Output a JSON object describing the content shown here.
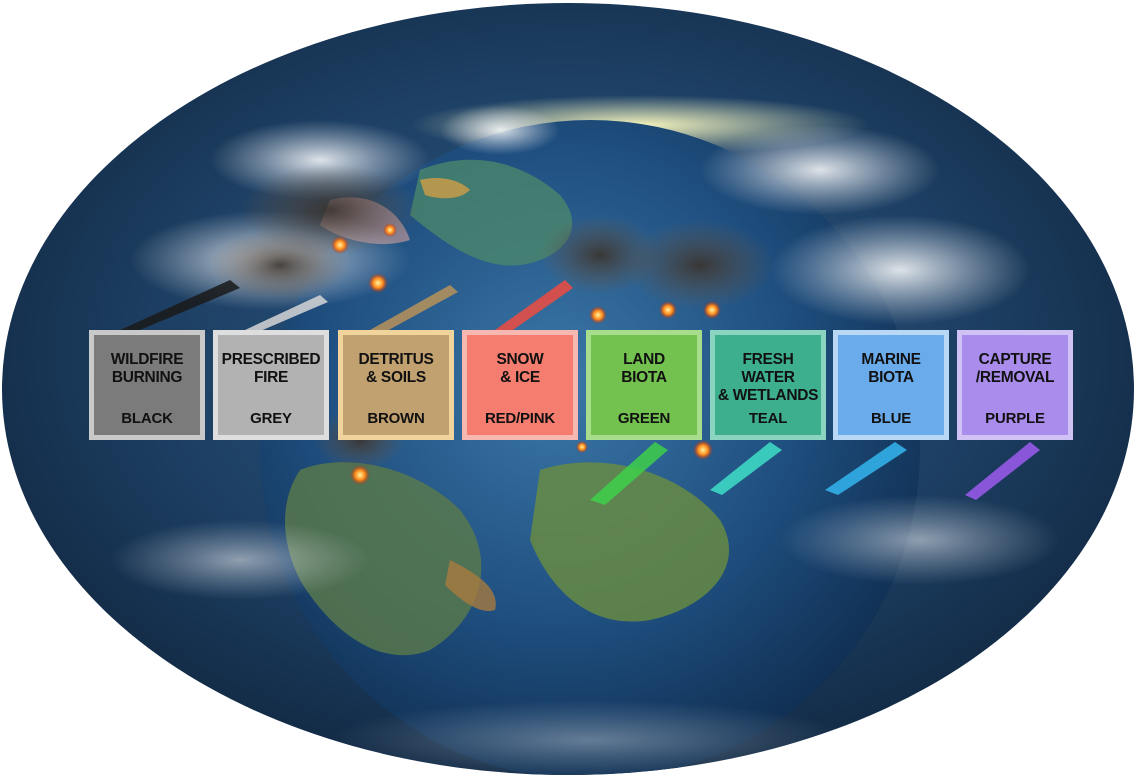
{
  "legend": [
    {
      "name": "WILDFIRE\nBURNING",
      "color_label": "BLACK",
      "fill": "#7b7b7b",
      "border": "#c9c9c9"
    },
    {
      "name": "PRESCRIBED\nFIRE",
      "color_label": "GREY",
      "fill": "#b2b2b2",
      "border": "#dedede"
    },
    {
      "name": "DETRITUS\n& SOILS",
      "color_label": "BROWN",
      "fill": "#c2a170",
      "border": "#f1d49c"
    },
    {
      "name": "SNOW\n& ICE",
      "color_label": "RED/PINK",
      "fill": "#f47d6f",
      "border": "#f7b8b2"
    },
    {
      "name": "LAND\nBIOTA",
      "color_label": "GREEN",
      "fill": "#73c14f",
      "border": "#a9dd8e"
    },
    {
      "name": "FRESH WATER\n& WETLANDS",
      "color_label": "TEAL",
      "fill": "#3daf8f",
      "border": "#8bd5c0"
    },
    {
      "name": "MARINE\nBIOTA",
      "color_label": "BLUE",
      "fill": "#6aabeb",
      "border": "#b8d8f6"
    },
    {
      "name": "CAPTURE\n/REMOVAL",
      "color_label": "PURPLE",
      "fill": "#a98cec",
      "border": "#d1c2f6"
    }
  ]
}
